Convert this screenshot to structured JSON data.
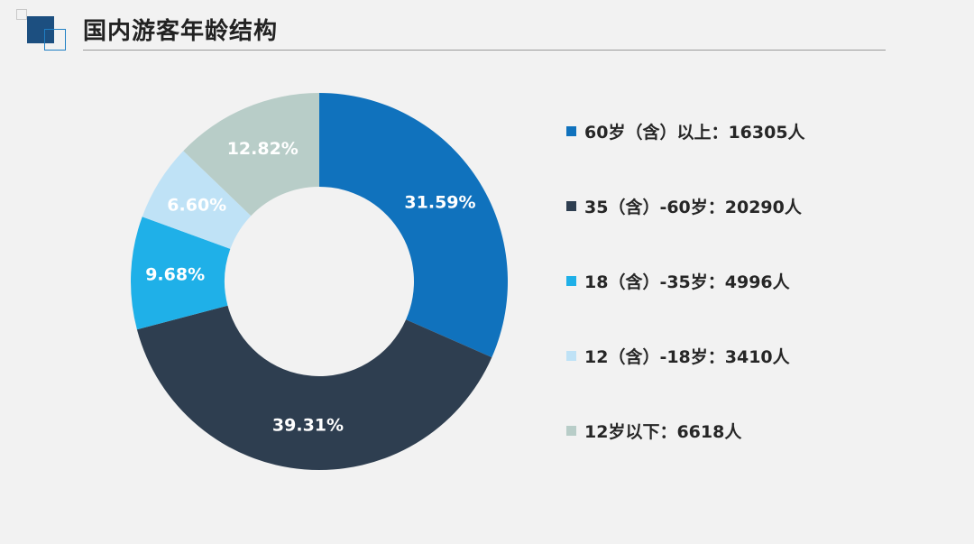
{
  "title": "国内游客年龄结构",
  "chart_data": {
    "type": "pie",
    "variant": "donut",
    "title": "国内游客年龄结构",
    "legend_position": "right",
    "slices": [
      {
        "label": "31.59%",
        "value": 31.59,
        "color": "#1072bd"
      },
      {
        "label": "39.31%",
        "value": 39.31,
        "color": "#2e3e50"
      },
      {
        "label": "9.68%",
        "value": 9.68,
        "color": "#1fb0e8"
      },
      {
        "label": "6.60%",
        "value": 6.6,
        "color": "#bfe2f6"
      },
      {
        "label": "12.82%",
        "value": 12.82,
        "color": "#b8cdc8"
      }
    ],
    "legend": [
      {
        "text": "60岁（含）以上：16305人",
        "color": "#1072bd"
      },
      {
        "text": "35（含）-60岁：20290人",
        "color": "#2e3e50"
      },
      {
        "text": "18（含）-35岁：4996人",
        "color": "#1fb0e8"
      },
      {
        "text": "12（含）-18岁：3410人",
        "color": "#bfe2f6"
      },
      {
        "text": "12岁以下：6618人",
        "color": "#b8cdc8"
      }
    ]
  }
}
